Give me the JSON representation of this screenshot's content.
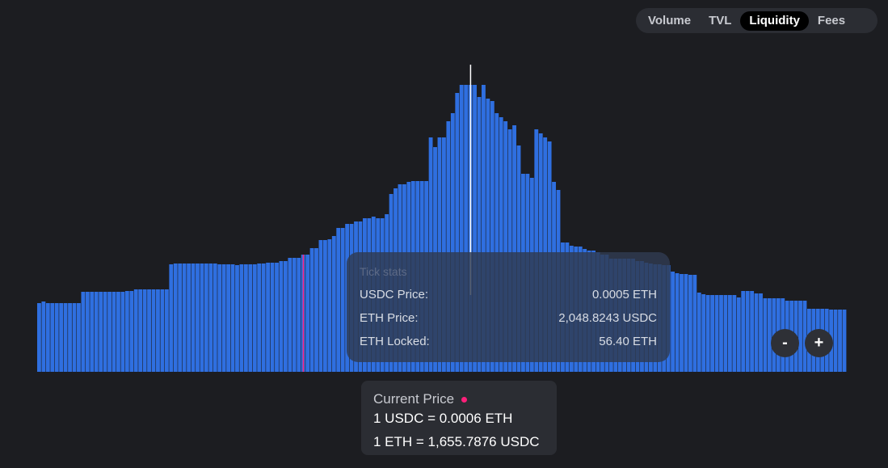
{
  "tabs": {
    "items": [
      {
        "label": "Volume"
      },
      {
        "label": "TVL"
      },
      {
        "label": "Liquidity"
      },
      {
        "label": "Fees"
      }
    ],
    "active": "Liquidity"
  },
  "tooltip": {
    "title": "Tick stats",
    "rows": [
      {
        "label": "USDC Price:",
        "value": "0.0005 ETH"
      },
      {
        "label": "ETH Price:",
        "value": "2,048.8243 USDC"
      },
      {
        "label": "ETH Locked:",
        "value": "56.40 ETH"
      }
    ]
  },
  "zoom": {
    "minus": "-",
    "plus": "+"
  },
  "current_price": {
    "title": "Current Price",
    "line1": "1 USDC = 0.0006 ETH",
    "line2": "1 ETH = 1,655.7876 USDC"
  },
  "colors": {
    "bar": "#2f6fe0",
    "bar_edge": "#1f54b8",
    "current_price_line": "#ff1f7a",
    "hover_line": "#ffffff",
    "background": "#1c1d21"
  },
  "chart_data": {
    "type": "bar",
    "series_description": "liquidity per tick (relative units)",
    "ylim": [
      0,
      360
    ],
    "current_price_index": 60,
    "hover_index": 98,
    "values": [
      85,
      87,
      85,
      85,
      85,
      85,
      85,
      85,
      85,
      85,
      99,
      99,
      99,
      99,
      99,
      99,
      99,
      99,
      99,
      99,
      100,
      100,
      102,
      102,
      102,
      102,
      102,
      102,
      102,
      102,
      133,
      134,
      134,
      134,
      134,
      134,
      134,
      134,
      134,
      134,
      134,
      133,
      133,
      133,
      133,
      132,
      133,
      133,
      133,
      133,
      134,
      134,
      135,
      135,
      135,
      137,
      137,
      141,
      141,
      141,
      145,
      145,
      153,
      153,
      163,
      163,
      164,
      168,
      178,
      178,
      183,
      183,
      186,
      186,
      190,
      190,
      192,
      190,
      190,
      195,
      220,
      227,
      232,
      232,
      235,
      236,
      236,
      236,
      236,
      290,
      278,
      290,
      290,
      310,
      320,
      345,
      355,
      355,
      355,
      355,
      340,
      355,
      338,
      335,
      320,
      315,
      310,
      300,
      305,
      280,
      245,
      245,
      240,
      300,
      295,
      290,
      285,
      235,
      225,
      160,
      160,
      156,
      155,
      155,
      152,
      150,
      150,
      148,
      145,
      145,
      140,
      140,
      140,
      140,
      140,
      140,
      137,
      137,
      135,
      134,
      133,
      133,
      132,
      132,
      124,
      122,
      121,
      121,
      120,
      120,
      98,
      96,
      95,
      95,
      95,
      95,
      95,
      95,
      95,
      92,
      100,
      100,
      100,
      97,
      97,
      91,
      91,
      91,
      91,
      91,
      88,
      88,
      88,
      88,
      88,
      78,
      78,
      78,
      78,
      78,
      77,
      77,
      77,
      77
    ]
  }
}
